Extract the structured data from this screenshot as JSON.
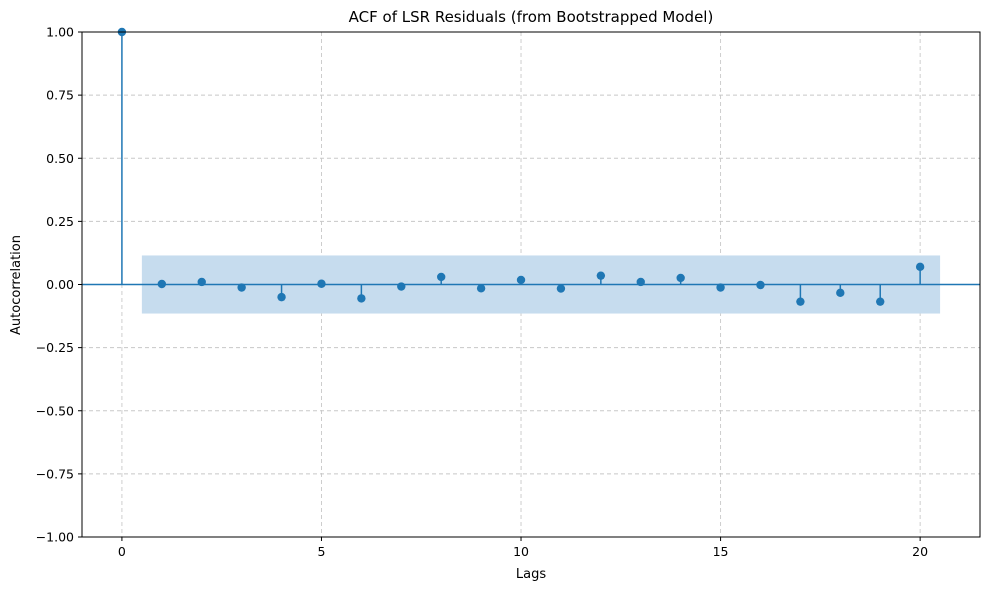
{
  "chart_data": {
    "type": "stem",
    "title": "ACF of LSR Residuals (from Bootstrapped Model)",
    "xlabel": "Lags",
    "ylabel": "Autocorrelation",
    "xlim": [
      -1,
      21.5
    ],
    "ylim": [
      -1.0,
      1.0
    ],
    "xticks": [
      0,
      5,
      10,
      15,
      20
    ],
    "xtick_labels": [
      "0",
      "5",
      "10",
      "15",
      "20"
    ],
    "yticks": [
      -1.0,
      -0.75,
      -0.5,
      -0.25,
      0.0,
      0.25,
      0.5,
      0.75,
      1.0
    ],
    "ytick_labels": [
      "−1.00",
      "−0.75",
      "−0.50",
      "−0.25",
      "0.00",
      "0.25",
      "0.50",
      "0.75",
      "1.00"
    ],
    "grid": true,
    "lags": [
      0,
      1,
      2,
      3,
      4,
      5,
      6,
      7,
      8,
      9,
      10,
      11,
      12,
      13,
      14,
      15,
      16,
      17,
      18,
      19,
      20
    ],
    "values": [
      1.0,
      0.002,
      0.01,
      -0.012,
      -0.05,
      0.003,
      -0.055,
      -0.008,
      0.03,
      -0.015,
      0.018,
      -0.016,
      0.035,
      0.01,
      0.026,
      -0.012,
      -0.002,
      -0.068,
      -0.033,
      -0.068,
      0.07
    ],
    "confidence_band": {
      "x_start": 0.5,
      "x_end": 20.5,
      "lower": -0.115,
      "upper": 0.115
    },
    "colors": {
      "stem": "#1f77b4",
      "band": "#c6dcee",
      "grid": "#c8c8c8"
    }
  }
}
